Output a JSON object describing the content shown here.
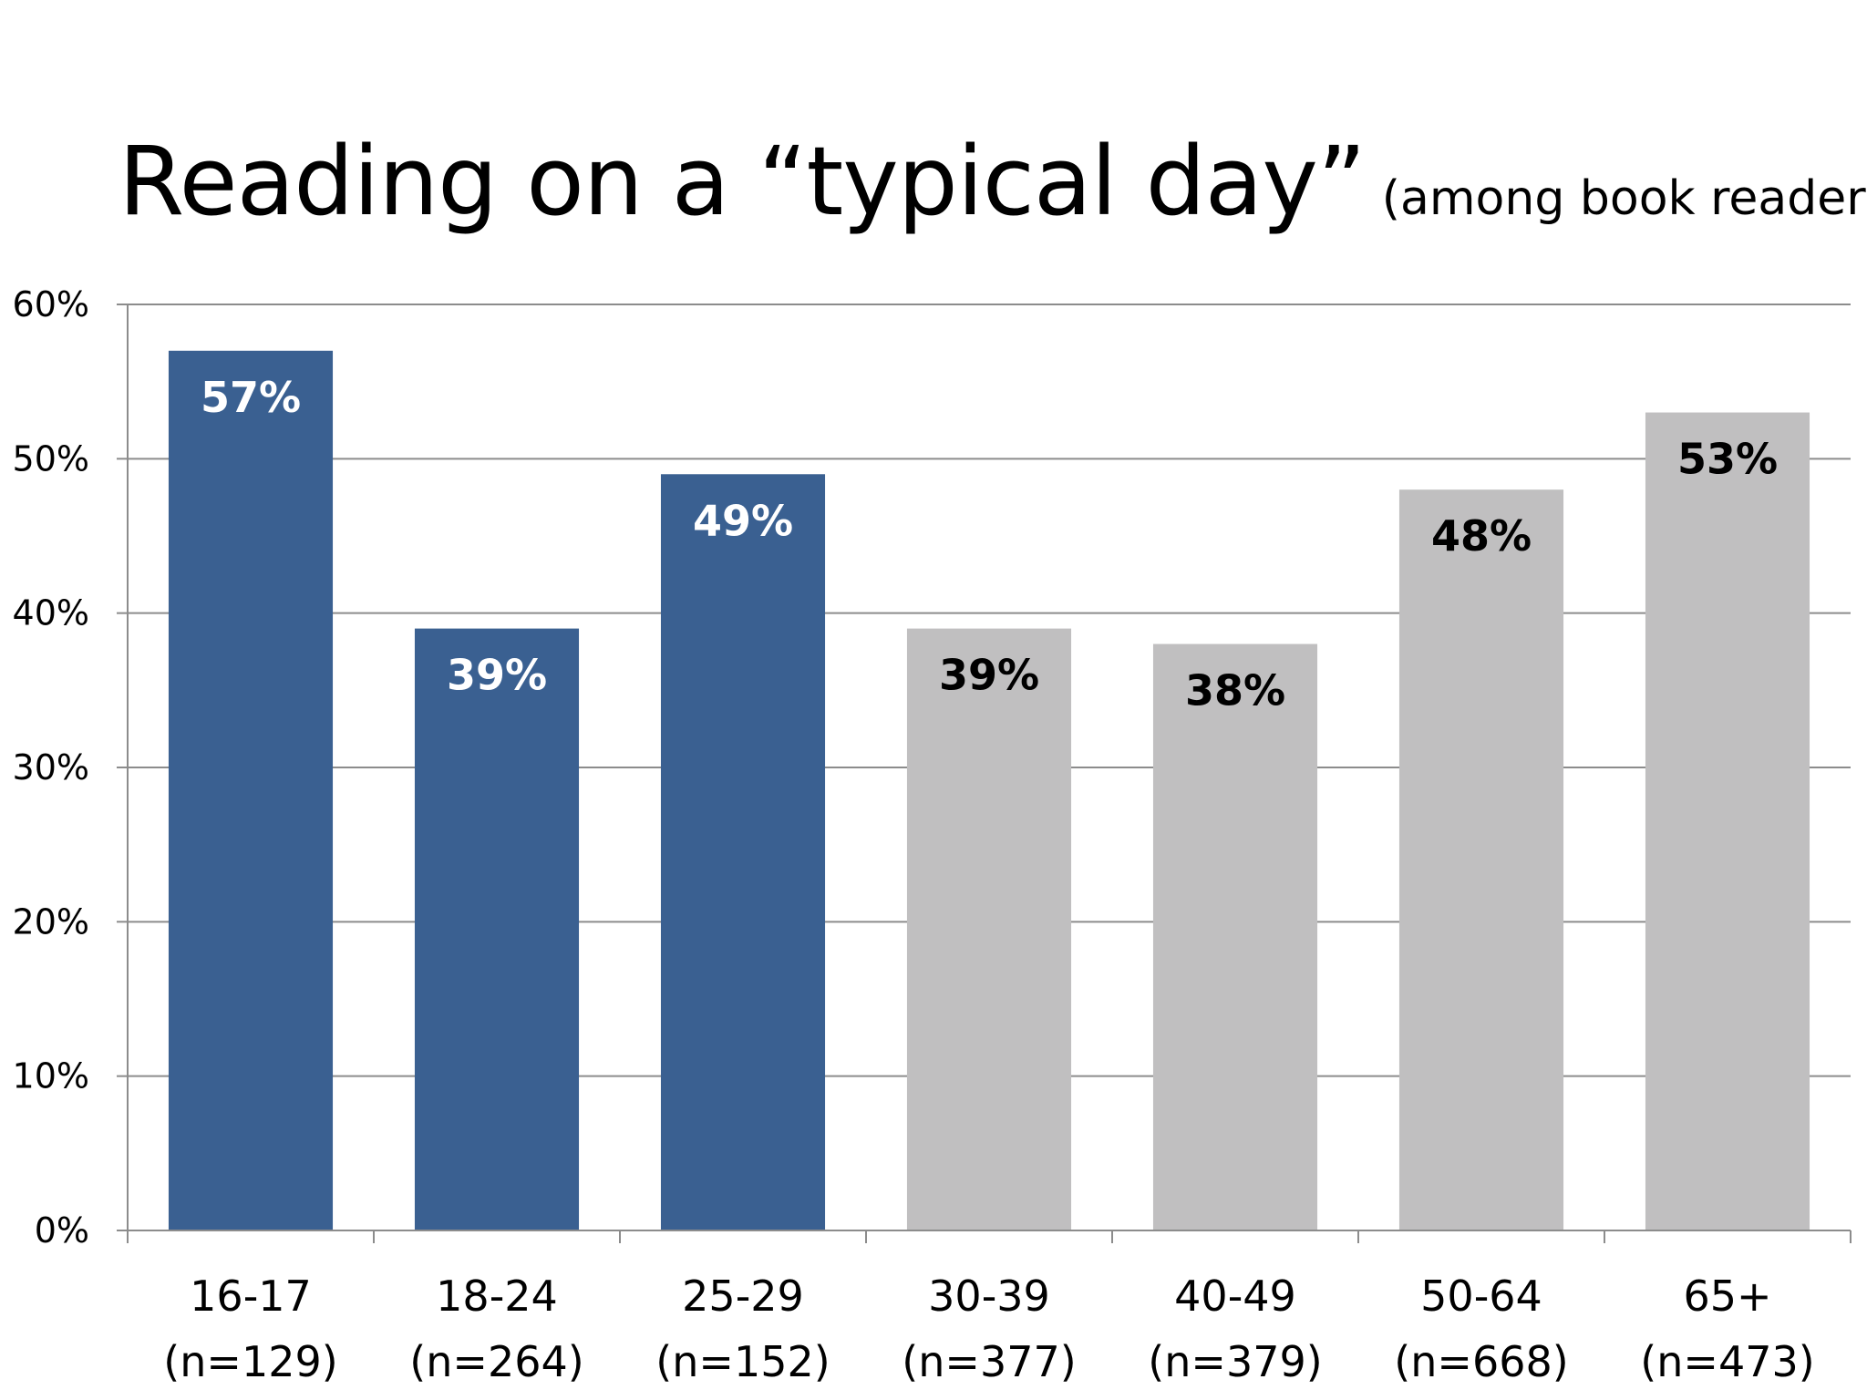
{
  "chart_data": {
    "type": "bar",
    "title": "Reading on a “typical day”",
    "subtitle": "(among book readers)",
    "categories": [
      "16-17",
      "18-24",
      "25-29",
      "30-39",
      "40-49",
      "50-64",
      "65+"
    ],
    "sample_sizes": [
      "(n=129)",
      "(n=264)",
      "(n=152)",
      "(n=377)",
      "(n=379)",
      "(n=668)",
      "(n=473)"
    ],
    "values": [
      57,
      39,
      49,
      39,
      38,
      48,
      53
    ],
    "value_labels": [
      "57%",
      "39%",
      "49%",
      "39%",
      "38%",
      "48%",
      "53%"
    ],
    "y_ticks": [
      "0%",
      "10%",
      "20%",
      "30%",
      "40%",
      "50%",
      "60%"
    ],
    "ylim": [
      0,
      60
    ],
    "grid": true,
    "legend": "none",
    "bar_colors": [
      "#3a6091",
      "#3a6091",
      "#3a6091",
      "#c0bfc0",
      "#c0bfc0",
      "#c0bfc0",
      "#c0bfc0"
    ],
    "label_colors": [
      "#ffffff",
      "#ffffff",
      "#ffffff",
      "#000000",
      "#000000",
      "#000000",
      "#000000"
    ]
  }
}
